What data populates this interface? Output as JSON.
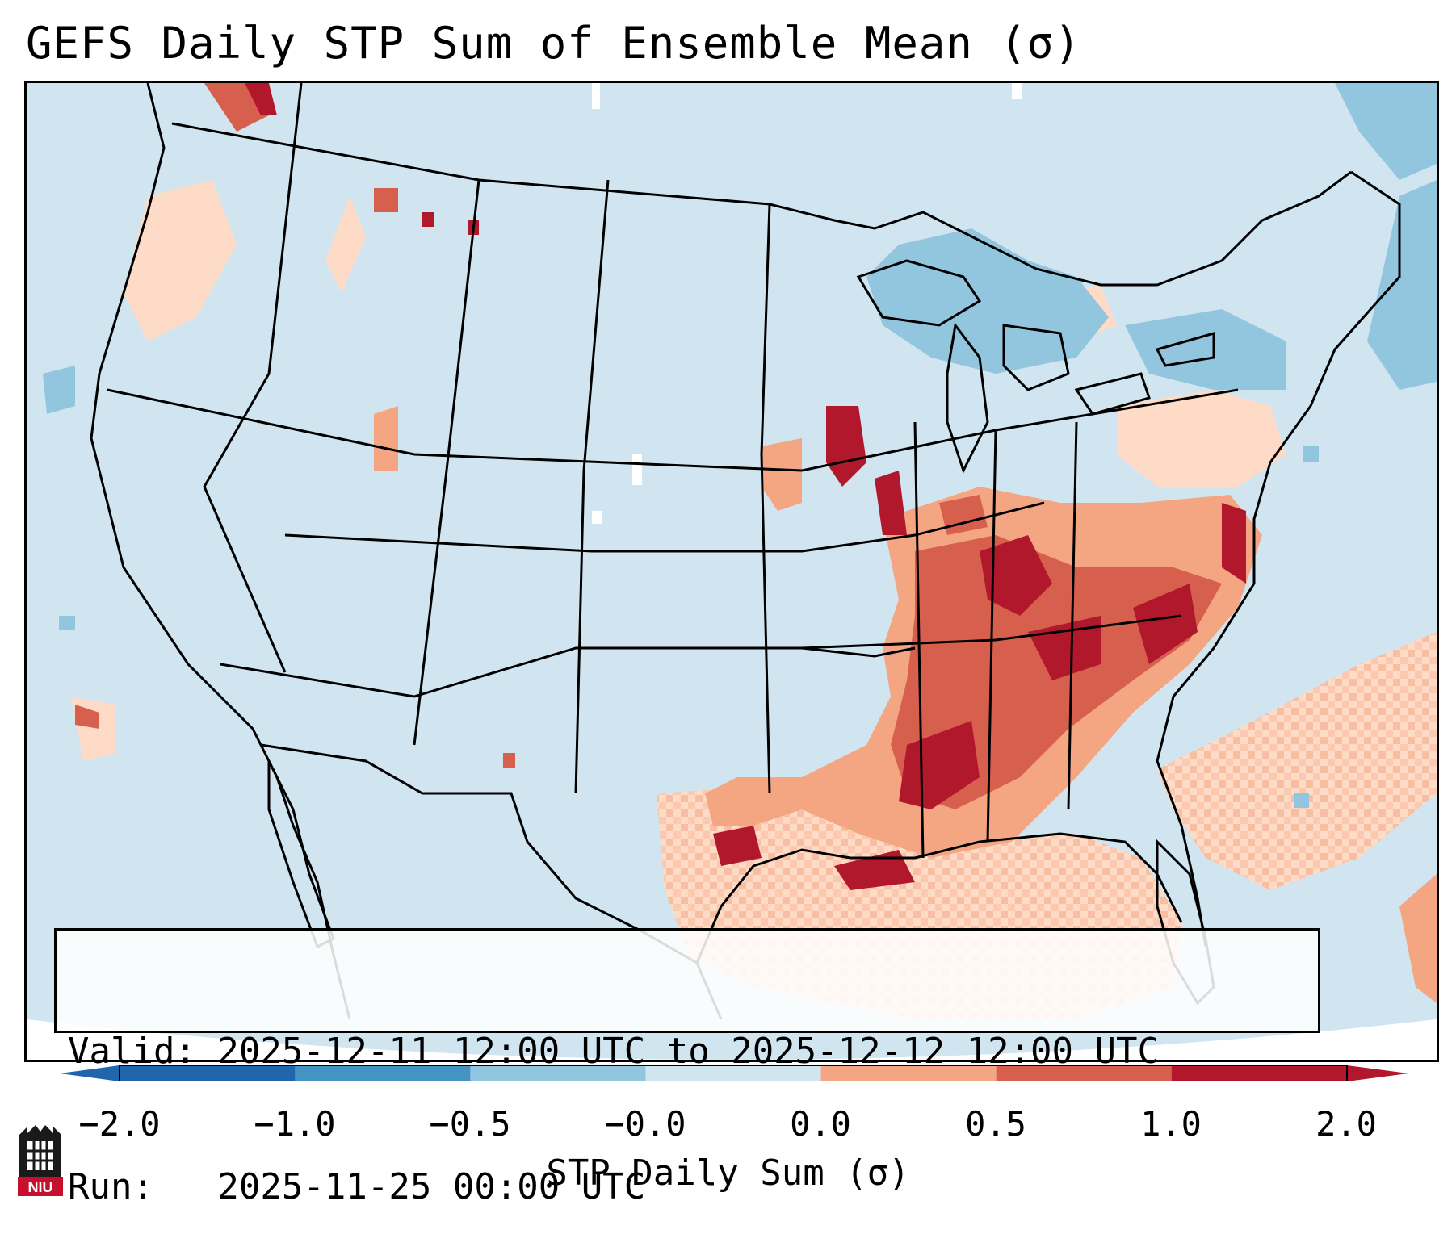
{
  "title": "GEFS Daily STP Sum of Ensemble Mean (σ)",
  "info": {
    "valid_line": "Valid: 2025-12-11 12:00 UTC to 2025-12-12 12:00 UTC",
    "run_line": "Run:   2025-11-25 00:00 UTC"
  },
  "colorbar": {
    "label": "STP Daily Sum (σ)",
    "ticks": [
      "−2.0",
      "−1.0",
      "−0.5",
      "−0.0",
      "0.0",
      "0.5",
      "1.0",
      "2.0"
    ],
    "colors": [
      "#2166ac",
      "#4393c3",
      "#92c5de",
      "#d1e5f0",
      "#fddbc7",
      "#f4a582",
      "#d6604d",
      "#b2182b"
    ],
    "extend": "both"
  },
  "map": {
    "background_color": "#d1e5f0",
    "region": "Contiguous United States"
  },
  "logo": {
    "text": "NIU"
  }
}
